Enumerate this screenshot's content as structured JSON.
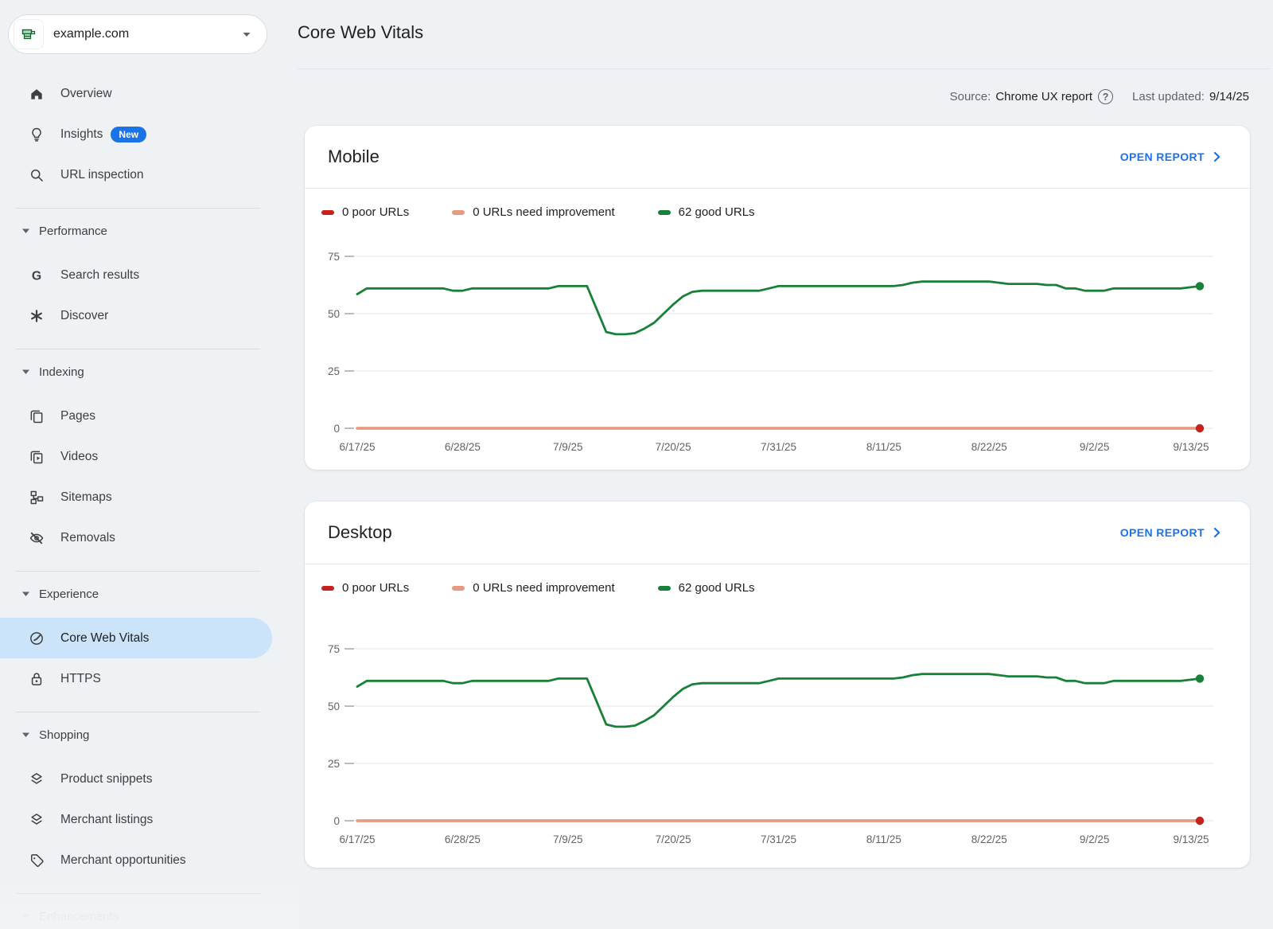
{
  "property": {
    "name": "example.com",
    "icon": "site-favicon-icon"
  },
  "page": {
    "title": "Core Web Vitals",
    "source_label": "Source:",
    "source_value": "Chrome UX report",
    "help_glyph": "?",
    "last_updated_label": "Last updated:",
    "last_updated_value": "9/14/25"
  },
  "sidebar": {
    "groups": [
      {
        "items": [
          {
            "label": "Overview",
            "icon": "home-icon"
          },
          {
            "label": "Insights",
            "icon": "lightbulb-icon",
            "badge": "New"
          },
          {
            "label": "URL inspection",
            "icon": "search-icon"
          }
        ]
      },
      {
        "header": "Performance",
        "items": [
          {
            "label": "Search results",
            "icon": "google-g-icon"
          },
          {
            "label": "Discover",
            "icon": "asterisk-icon"
          }
        ]
      },
      {
        "header": "Indexing",
        "items": [
          {
            "label": "Pages",
            "icon": "pages-icon"
          },
          {
            "label": "Videos",
            "icon": "videos-icon"
          },
          {
            "label": "Sitemaps",
            "icon": "sitemap-icon"
          },
          {
            "label": "Removals",
            "icon": "eye-off-icon"
          }
        ]
      },
      {
        "header": "Experience",
        "items": [
          {
            "label": "Core Web Vitals",
            "icon": "gauge-icon",
            "selected": true
          },
          {
            "label": "HTTPS",
            "icon": "lock-icon"
          }
        ]
      },
      {
        "header": "Shopping",
        "items": [
          {
            "label": "Product snippets",
            "icon": "snippet-icon"
          },
          {
            "label": "Merchant listings",
            "icon": "listings-icon"
          },
          {
            "label": "Merchant opportunities",
            "icon": "tag-icon"
          }
        ]
      },
      {
        "header": "Enhancements",
        "items": [],
        "faded": true
      }
    ]
  },
  "cards": [
    {
      "title": "Mobile",
      "action_label": "OPEN REPORT"
    },
    {
      "title": "Desktop",
      "action_label": "OPEN REPORT"
    }
  ],
  "chart_data": [
    {
      "type": "line",
      "title": "Mobile",
      "x_tick_labels": [
        "6/17/25",
        "6/28/25",
        "7/9/25",
        "7/20/25",
        "7/31/25",
        "8/11/25",
        "8/22/25",
        "9/2/25",
        "9/13/25"
      ],
      "x_tick_day_indices": [
        0,
        11,
        22,
        33,
        44,
        55,
        66,
        77,
        88
      ],
      "days": 89,
      "yticks": [
        0,
        25,
        50,
        75
      ],
      "ylim": [
        0,
        83
      ],
      "grid": true,
      "legend_position": "top",
      "series": [
        {
          "name": "0 poor URLs",
          "color": "#c5221f",
          "constant_value": 0
        },
        {
          "name": "0 URLs need improvement",
          "color": "#e89a80",
          "constant_value": 0
        },
        {
          "name": "62 good URLs",
          "color": "#188038",
          "values": [
            58.5,
            61,
            61,
            61,
            61,
            61,
            61,
            61,
            61,
            61,
            60,
            60,
            61,
            61,
            61,
            61,
            61,
            61,
            61,
            61,
            61,
            62,
            62,
            62,
            62,
            52,
            42,
            41,
            41,
            41.5,
            43.5,
            46,
            50,
            54,
            57.5,
            59.5,
            60,
            60,
            60,
            60,
            60,
            60,
            60,
            61,
            62,
            62,
            62,
            62,
            62,
            62,
            62,
            62,
            62,
            62,
            62,
            62,
            62,
            62.5,
            63.5,
            64,
            64,
            64,
            64,
            64,
            64,
            64,
            64,
            63.5,
            63,
            63,
            63,
            63,
            62.5,
            62.5,
            61,
            61,
            60,
            60,
            60,
            61,
            61,
            61,
            61,
            61,
            61,
            61,
            61,
            61.5,
            62
          ]
        }
      ]
    },
    {
      "type": "line",
      "title": "Desktop",
      "x_tick_labels": [
        "6/17/25",
        "6/28/25",
        "7/9/25",
        "7/20/25",
        "7/31/25",
        "8/11/25",
        "8/22/25",
        "9/2/25",
        "9/13/25"
      ],
      "x_tick_day_indices": [
        0,
        11,
        22,
        33,
        44,
        55,
        66,
        77,
        88
      ],
      "days": 89,
      "yticks": [
        0,
        25,
        50,
        75
      ],
      "ylim": [
        0,
        83
      ],
      "grid": true,
      "legend_position": "top",
      "series": [
        {
          "name": "0 poor URLs",
          "color": "#c5221f",
          "constant_value": 0
        },
        {
          "name": "0 URLs need improvement",
          "color": "#e89a80",
          "constant_value": 0
        },
        {
          "name": "62 good URLs",
          "color": "#188038",
          "values": [
            58.5,
            61,
            61,
            61,
            61,
            61,
            61,
            61,
            61,
            61,
            60,
            60,
            61,
            61,
            61,
            61,
            61,
            61,
            61,
            61,
            61,
            62,
            62,
            62,
            62,
            52,
            42,
            41,
            41,
            41.5,
            43.5,
            46,
            50,
            54,
            57.5,
            59.5,
            60,
            60,
            60,
            60,
            60,
            60,
            60,
            61,
            62,
            62,
            62,
            62,
            62,
            62,
            62,
            62,
            62,
            62,
            62,
            62,
            62,
            62.5,
            63.5,
            64,
            64,
            64,
            64,
            64,
            64,
            64,
            64,
            63.5,
            63,
            63,
            63,
            63,
            62.5,
            62.5,
            61,
            61,
            60,
            60,
            60,
            61,
            61,
            61,
            61,
            61,
            61,
            61,
            61,
            61.5,
            62
          ]
        }
      ]
    }
  ],
  "colors": {
    "background": "#eff2f5",
    "card": "#ffffff",
    "accent_blue": "#1a73e8",
    "selected_item_bg": "#cbe4f9",
    "good": "#188038",
    "poor": "#c5221f",
    "needs_improvement": "#e89a80",
    "gridline": "#e9ebee",
    "axis_text": "#5f6368"
  }
}
